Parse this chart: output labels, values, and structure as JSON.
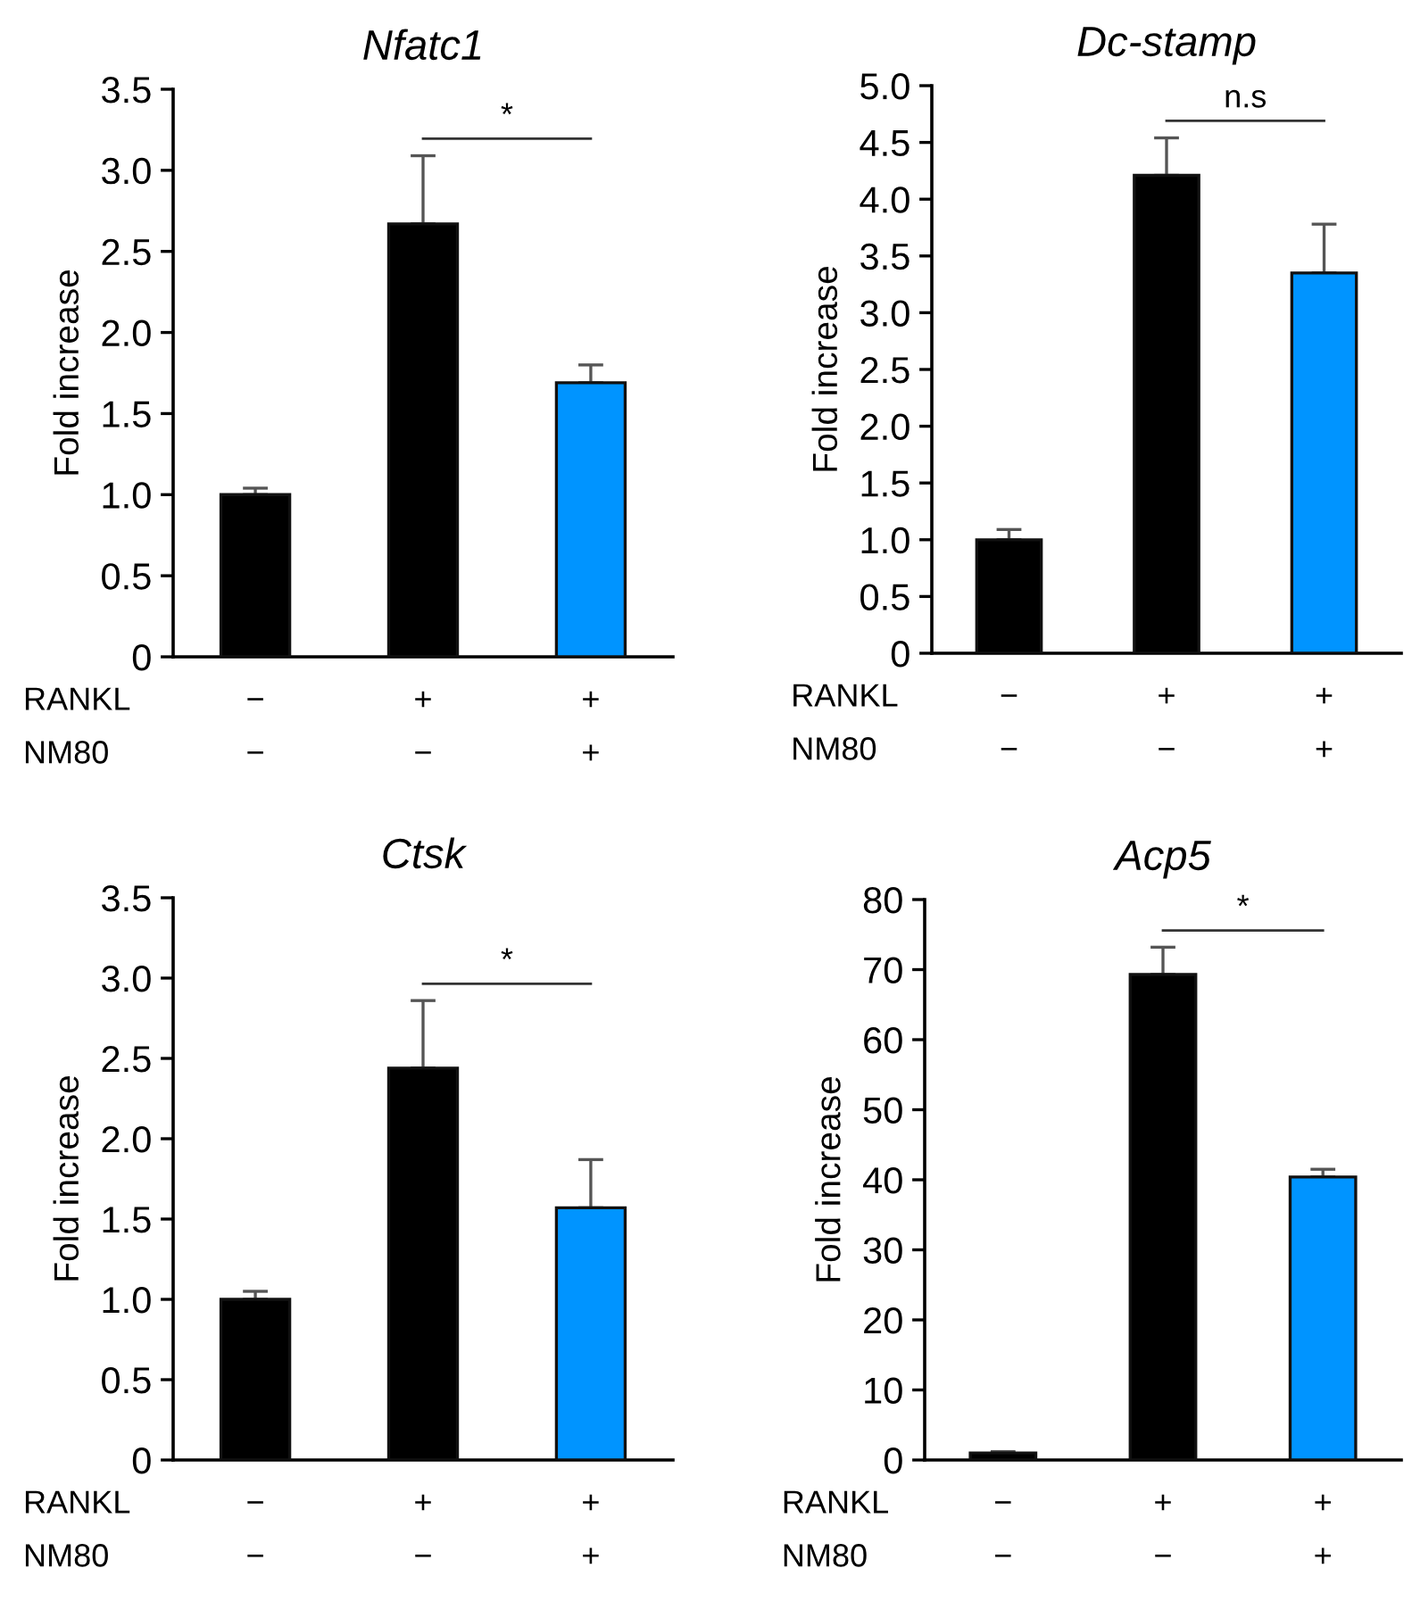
{
  "chart_data": [
    {
      "type": "bar",
      "title": "Nfatc1",
      "ylabel": "Fold increase",
      "categories": [
        "−\n−",
        "+\n−",
        "+\n+"
      ],
      "values": [
        1.0,
        2.67,
        1.69
      ],
      "colors": [
        "#000000",
        "#000000",
        "#0094ff"
      ],
      "errors": [
        [
          1.0,
          1.04
        ],
        [
          2.67,
          3.09
        ],
        [
          1.69,
          1.8
        ]
      ],
      "ylim": [
        0,
        3.5
      ],
      "yticks": [
        0,
        0.5,
        {
          "value": 1,
          "label": "1.0"
        },
        1.5,
        {
          "value": 2,
          "label": "2.0"
        },
        2.5,
        {
          "value": 3,
          "label": "3.0"
        },
        3.5
      ],
      "annotations": [
        "RANKL",
        "NM80",
        "*"
      ]
    },
    {
      "type": "bar",
      "title": "Dc-stamp",
      "ylabel": "Fold increase",
      "categories": [
        "−\n−",
        "+\n−",
        "+\n+"
      ],
      "values": [
        1.0,
        4.21,
        3.35
      ],
      "colors": [
        "#000000",
        "#000000",
        "#0094ff"
      ],
      "errors": [
        [
          1.0,
          1.09
        ],
        [
          4.21,
          4.54
        ],
        [
          3.35,
          3.78
        ]
      ],
      "ylim": [
        0,
        5.0
      ],
      "yticks": [
        0,
        0.5,
        {
          "value": 1,
          "label": "1.0"
        },
        1.5,
        {
          "value": 2,
          "label": "2.0"
        },
        2.5,
        {
          "value": 3,
          "label": "3.0"
        },
        3.5,
        {
          "value": 4,
          "label": "4.0"
        },
        4.5,
        {
          "value": 5,
          "label": "5.0"
        }
      ],
      "annotations": [
        "RANKL",
        "NM80",
        "n.s"
      ]
    },
    {
      "type": "bar",
      "title": "Ctsk",
      "ylabel": "Fold increase",
      "categories": [
        "−\n−",
        "+\n−",
        "+\n+"
      ],
      "values": [
        1.0,
        2.44,
        1.57
      ],
      "colors": [
        "#000000",
        "#000000",
        "#0094ff"
      ],
      "errors": [
        [
          1.0,
          1.05
        ],
        [
          2.44,
          2.86
        ],
        [
          1.57,
          1.87
        ]
      ],
      "ylim": [
        0,
        3.5
      ],
      "yticks": [
        0,
        0.5,
        {
          "value": 1,
          "label": "1.0"
        },
        1.5,
        {
          "value": 2,
          "label": "2.0"
        },
        2.5,
        {
          "value": 3,
          "label": "3.0"
        },
        3.5
      ],
      "annotations": [
        "RANKL",
        "NM80",
        "*"
      ]
    },
    {
      "type": "bar",
      "title": "Acp5",
      "ylabel": "Fold increase",
      "categories": [
        "−\n−",
        "+\n−",
        "+\n+"
      ],
      "values": [
        1.0,
        69.3,
        40.4
      ],
      "colors": [
        "#000000",
        "#000000",
        "#0094ff"
      ],
      "errors": [
        [
          1.0,
          1.2
        ],
        [
          69.3,
          73.2
        ],
        [
          40.4,
          41.5
        ]
      ],
      "ylim": [
        0,
        80
      ],
      "yticks": [
        0,
        10,
        20,
        30,
        40,
        50,
        60,
        70,
        80
      ],
      "annotations": [
        "RANKL",
        "NM80",
        "*"
      ]
    }
  ]
}
